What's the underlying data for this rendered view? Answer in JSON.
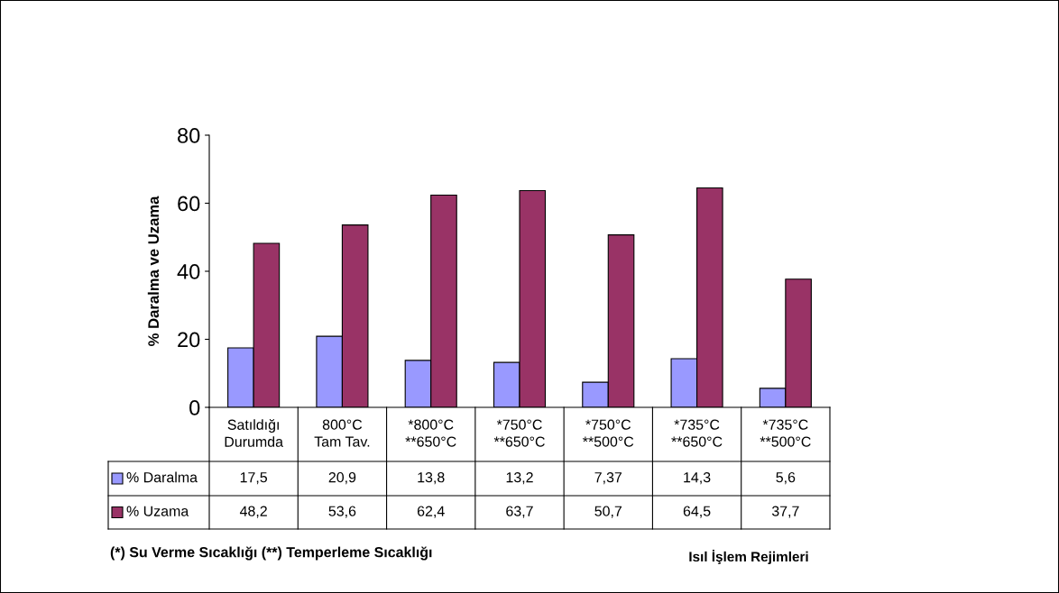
{
  "chart_data": {
    "type": "bar",
    "ylabel": "% Daralma ve Uzama",
    "legend": "bottom left",
    "annotations": [
      "(*) Su Verme Sıcaklığı (**) Temperleme Sıcaklığı",
      "Isıl İşlem Rejimleri"
    ],
    "categories": [
      "Satıldığı\nDurumda",
      "800°C\nTam Tav.",
      "*800°C\n**650°C",
      "*750°C\n**650°C",
      "*750°C\n**500°C",
      "*735°C\n**650°C",
      "*735°C\n**500°C"
    ],
    "series": [
      {
        "name": "% Daralma",
        "color": "#9999ff",
        "values": [
          17.5,
          20.9,
          13.8,
          13.2,
          7.37,
          14.3,
          5.6
        ],
        "value_labels": [
          "17,5",
          "20,9",
          "13,8",
          "13,2",
          "7,37",
          "14,3",
          "5,6"
        ]
      },
      {
        "name": "% Uzama",
        "color": "#993366",
        "values": [
          48.2,
          53.6,
          62.4,
          63.7,
          50.7,
          64.5,
          37.7
        ],
        "value_labels": [
          "48,2",
          "53,6",
          "62,4",
          "63,7",
          "50,7",
          "64,5",
          "37,7"
        ]
      }
    ],
    "ylim": [
      0,
      80
    ],
    "yticks": [
      0,
      20,
      40,
      60,
      80
    ],
    "grid": false
  }
}
